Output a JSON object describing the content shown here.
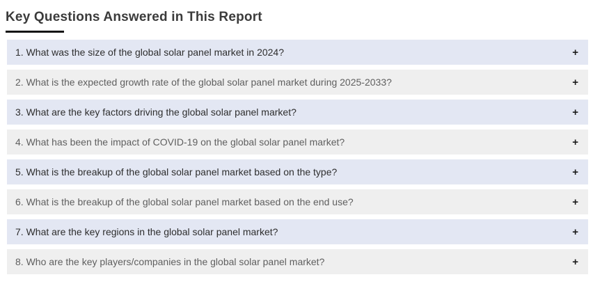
{
  "page": {
    "title": "Key Questions Answered in This Report"
  },
  "accordion": {
    "toggle_symbol": "+",
    "items": [
      {
        "question": "1. What was the size of the global solar panel market in 2024?"
      },
      {
        "question": "2. What is the expected growth rate of the global solar panel market during 2025-2033?"
      },
      {
        "question": "3. What are the key factors driving the global solar panel market?"
      },
      {
        "question": "4. What has been the impact of COVID-19 on the global solar panel market?"
      },
      {
        "question": "5. What is the breakup of the global solar panel market based on the type?"
      },
      {
        "question": "6. What is the breakup of the global solar panel market based on the end use?"
      },
      {
        "question": "7. What are the key regions in the global solar panel market?"
      },
      {
        "question": "8. Who are the key players/companies in the global solar panel market?"
      }
    ]
  },
  "colors": {
    "row_highlight": "#e3e7f3",
    "row_alternate": "#efefef",
    "title_underline": "#151515",
    "accent_bar": "#4a67c8"
  }
}
